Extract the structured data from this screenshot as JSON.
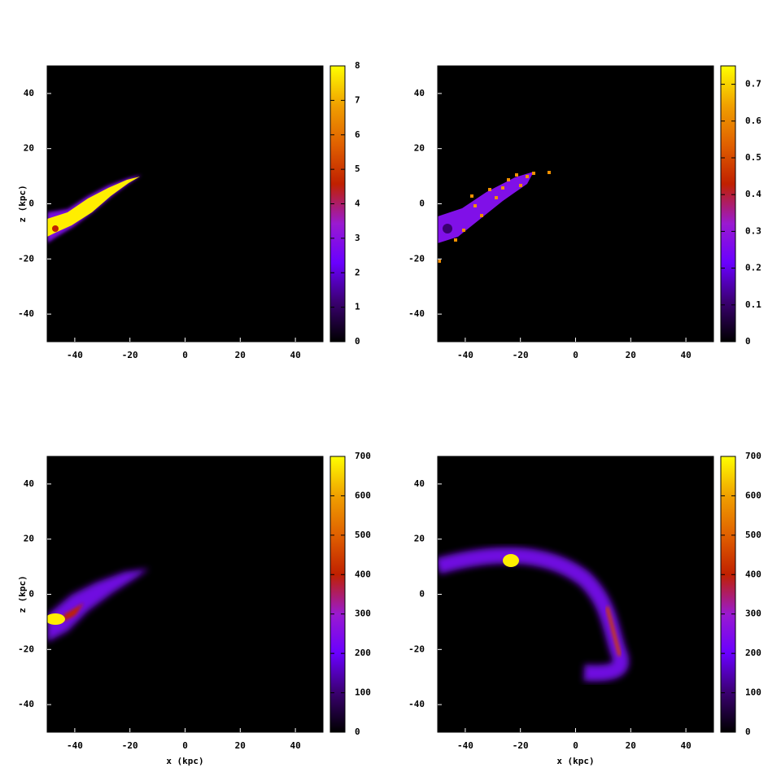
{
  "chart_data": [
    {
      "type": "heatmap",
      "ylabel": "z (kpc)",
      "xlim": [
        -50,
        50
      ],
      "ylim": [
        -50,
        50
      ],
      "xticks": [
        -40,
        -20,
        0,
        20,
        40
      ],
      "yticks": [
        -40,
        -20,
        0,
        20,
        40
      ],
      "colorbar": {
        "lim": [
          0,
          8
        ],
        "ticks": [
          0,
          1,
          2,
          3,
          4,
          5,
          6,
          7,
          8
        ]
      },
      "palette": [
        "#000000",
        "#3a0070",
        "#6a00ff",
        "#9a1ad0",
        "#c02000",
        "#e06000",
        "#f0a000",
        "#ffff00"
      ]
    },
    {
      "type": "heatmap",
      "xlim": [
        -50,
        50
      ],
      "ylim": [
        -50,
        50
      ],
      "xticks": [
        -40,
        -20,
        0,
        20,
        40
      ],
      "yticks": [
        -40,
        -20,
        0,
        20,
        40
      ],
      "colorbar": {
        "lim": [
          0,
          0.75
        ],
        "ticks": [
          0,
          0.1,
          0.2,
          0.3,
          0.4,
          0.5,
          0.6,
          0.7
        ]
      },
      "palette": [
        "#000000",
        "#3a0070",
        "#6a00ff",
        "#9a1ad0",
        "#c02000",
        "#e06000",
        "#f0a000",
        "#ffff00"
      ]
    },
    {
      "type": "heatmap",
      "xlabel": "x (kpc)",
      "ylabel": "z (kpc)",
      "xlim": [
        -50,
        50
      ],
      "ylim": [
        -50,
        50
      ],
      "xticks": [
        -40,
        -20,
        0,
        20,
        40
      ],
      "yticks": [
        -40,
        -20,
        0,
        20,
        40
      ],
      "colorbar": {
        "lim": [
          0,
          700
        ],
        "ticks": [
          0,
          100,
          200,
          300,
          400,
          500,
          600,
          700
        ]
      },
      "palette": [
        "#000000",
        "#3a0070",
        "#6a00ff",
        "#9a1ad0",
        "#c02000",
        "#e06000",
        "#f0a000",
        "#ffff00"
      ]
    },
    {
      "type": "heatmap",
      "xlabel": "x (kpc)",
      "xlim": [
        -50,
        50
      ],
      "ylim": [
        -50,
        50
      ],
      "xticks": [
        -40,
        -20,
        0,
        20,
        40
      ],
      "yticks": [
        -40,
        -20,
        0,
        20,
        40
      ],
      "colorbar": {
        "lim": [
          0,
          700
        ],
        "ticks": [
          0,
          100,
          200,
          300,
          400,
          500,
          600,
          700
        ]
      },
      "palette": [
        "#000000",
        "#3a0070",
        "#6a00ff",
        "#9a1ad0",
        "#c02000",
        "#e06000",
        "#f0a000",
        "#ffff00"
      ]
    }
  ]
}
